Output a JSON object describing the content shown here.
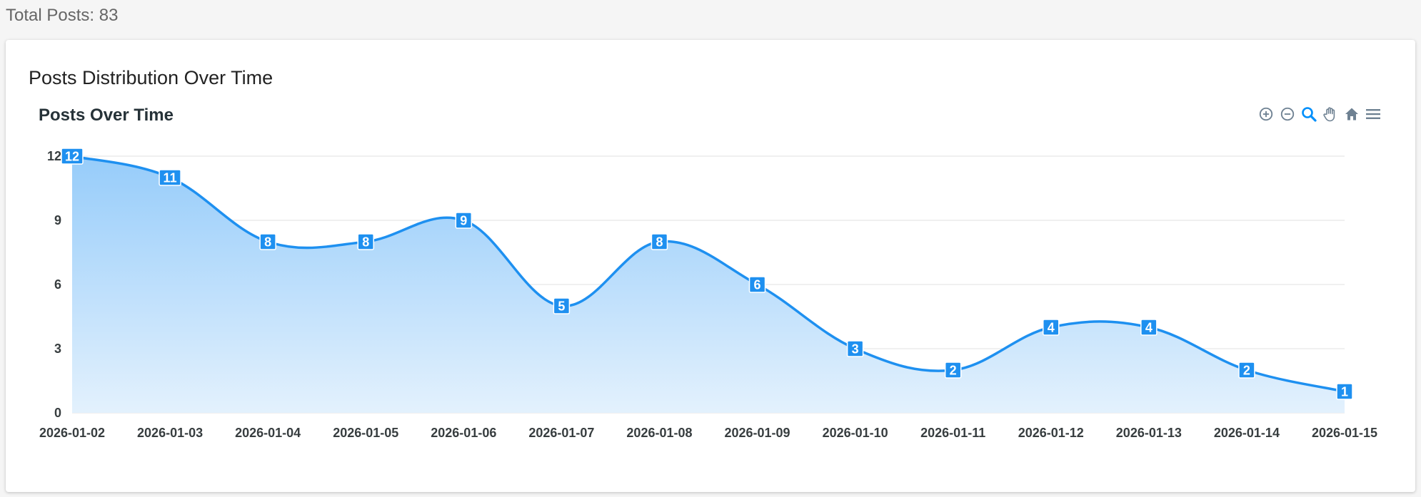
{
  "summary": {
    "total_posts_label": "Total Posts: 83"
  },
  "card": {
    "title": "Posts Distribution Over Time"
  },
  "toolbar": {
    "icons": [
      "zoom-in-icon",
      "zoom-out-icon",
      "selection-zoom-icon",
      "pan-hand-icon",
      "reset-home-icon",
      "menu-icon"
    ]
  },
  "colors": {
    "series": "#1e90f0",
    "area_top": "#96ccfa",
    "area_bottom": "#e3f1fd",
    "grid": "#e0e0e0",
    "toolbar_icon": "#6e8192",
    "toolbar_active": "#008ffb"
  },
  "chart_data": {
    "type": "area",
    "title": "Posts Over Time",
    "xlabel": "",
    "ylabel": "",
    "categories": [
      "2026-01-02",
      "2026-01-03",
      "2026-01-04",
      "2026-01-05",
      "2026-01-06",
      "2026-01-07",
      "2026-01-08",
      "2026-01-09",
      "2026-01-10",
      "2026-01-11",
      "2026-01-12",
      "2026-01-13",
      "2026-01-14",
      "2026-01-15"
    ],
    "values": [
      12,
      11,
      8,
      8,
      9,
      5,
      8,
      6,
      3,
      2,
      4,
      4,
      2,
      1
    ],
    "yticks": [
      0,
      3,
      6,
      9,
      12
    ],
    "ylim": [
      0,
      12
    ],
    "grid": true,
    "curve": "smooth",
    "data_labels": true,
    "legend": "none"
  }
}
